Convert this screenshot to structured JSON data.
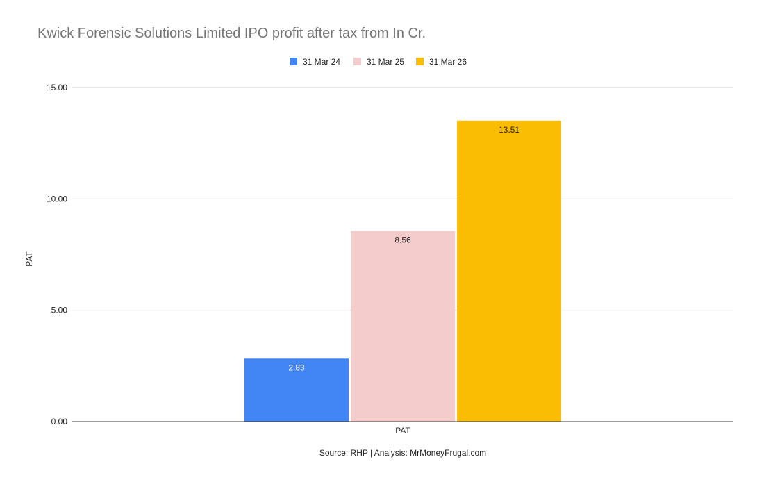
{
  "chart_data": {
    "type": "bar",
    "title": "Kwick Forensic Solutions Limited IPO profit after tax from In Cr.",
    "categories": [
      "PAT"
    ],
    "xlabel": "PAT",
    "ylabel": "PAT",
    "ylim": [
      0,
      15
    ],
    "yticks": [
      "0.00",
      "5.00",
      "10.00",
      "15.00"
    ],
    "ytick_values": [
      0,
      5,
      10,
      15
    ],
    "grid": true,
    "legend_position": "top-center",
    "series": [
      {
        "name": "31 Mar 24",
        "values": [
          2.83
        ],
        "label": "2.83",
        "color": "#4285F4",
        "label_color": "#ffffff"
      },
      {
        "name": "31 Mar 25",
        "values": [
          8.56
        ],
        "label": "8.56",
        "color": "#F4CCCC",
        "label_color": "#222222"
      },
      {
        "name": "31 Mar 26",
        "values": [
          13.51
        ],
        "label": "13.51",
        "color": "#FBBC04",
        "label_color": "#222222"
      }
    ],
    "source": "Source: RHP | Analysis: MrMoneyFrugal.com"
  }
}
